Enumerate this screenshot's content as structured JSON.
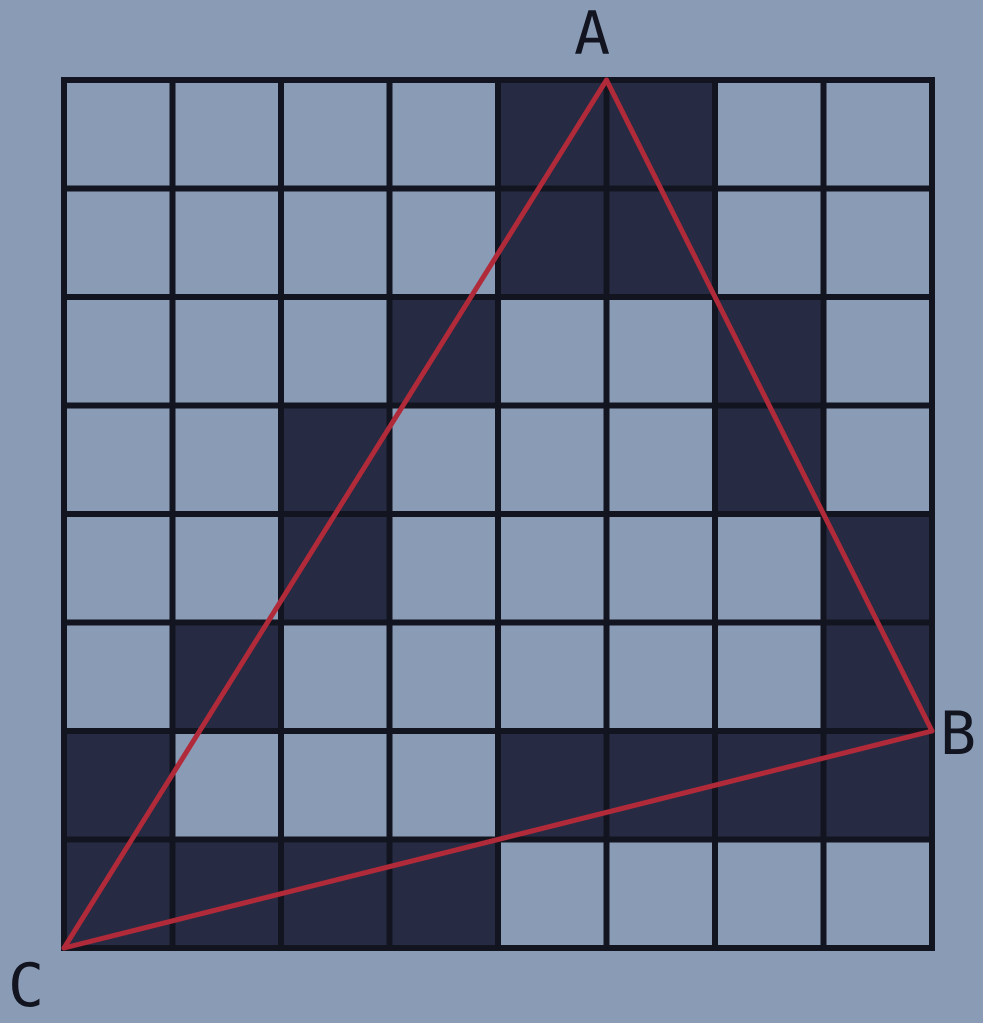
{
  "grid": {
    "columns": 8,
    "rows": 8,
    "filled_cells": [
      [
        0,
        4
      ],
      [
        0,
        5
      ],
      [
        1,
        4
      ],
      [
        1,
        5
      ],
      [
        2,
        3
      ],
      [
        2,
        6
      ],
      [
        3,
        2
      ],
      [
        3,
        6
      ],
      [
        4,
        2
      ],
      [
        4,
        7
      ],
      [
        5,
        1
      ],
      [
        5,
        7
      ],
      [
        6,
        0
      ],
      [
        6,
        4
      ],
      [
        6,
        5
      ],
      [
        6,
        6
      ],
      [
        6,
        7
      ],
      [
        7,
        0
      ],
      [
        7,
        1
      ],
      [
        7,
        2
      ],
      [
        7,
        3
      ]
    ]
  },
  "triangle": {
    "vertices": [
      {
        "label": "A",
        "col": 5,
        "row": 0
      },
      {
        "label": "B",
        "col": 8,
        "row": 6
      },
      {
        "label": "C",
        "col": 0,
        "row": 8
      }
    ]
  },
  "colors": {
    "background": "#8a9bb6",
    "cell_empty": "#8a9bb6",
    "cell_filled": "#262a42",
    "grid_line": "#12151f",
    "triangle_stroke": "#b02a3a",
    "label": "#12151f"
  },
  "labels": {
    "a": "A",
    "b": "B",
    "c": "C"
  }
}
